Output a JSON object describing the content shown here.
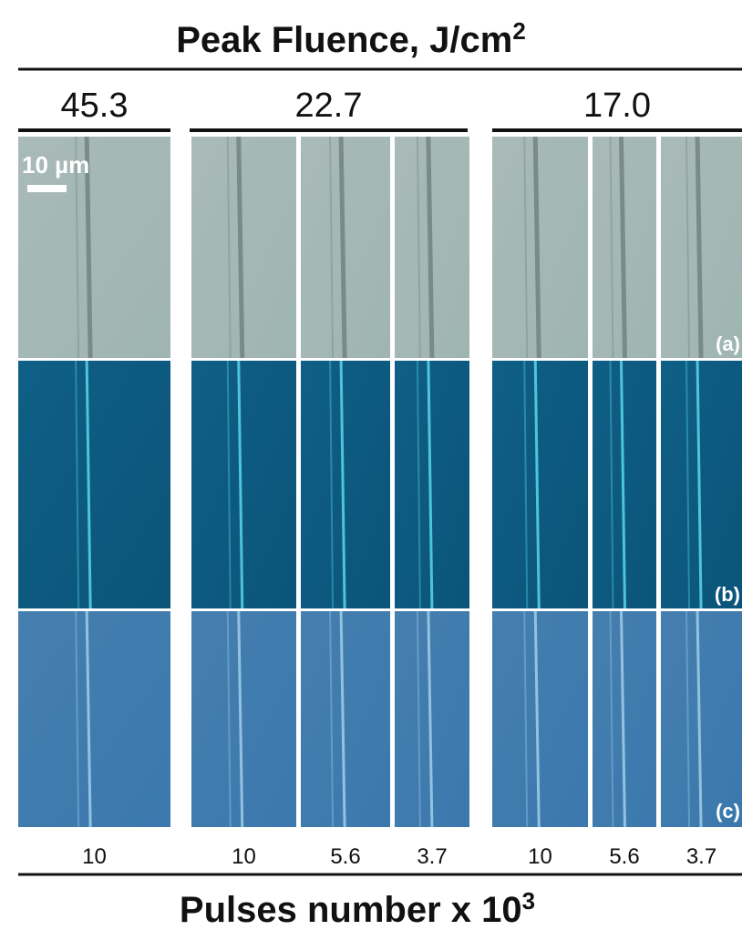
{
  "title": {
    "text": "Peak Fluence, J/cm",
    "superscript": "2"
  },
  "groups": [
    {
      "fluence": "45.3",
      "pulses": [
        "10"
      ]
    },
    {
      "fluence": "22.7",
      "pulses": [
        "10",
        "5.6",
        "3.7"
      ]
    },
    {
      "fluence": "17.0",
      "pulses": [
        "10",
        "5.6",
        "3.7"
      ]
    }
  ],
  "scale_bar": "10 µm",
  "row_labels": [
    "(a)",
    "(b)",
    "(c)"
  ],
  "x_label": {
    "text": "Pulses number x 10",
    "superscript": "3"
  }
}
